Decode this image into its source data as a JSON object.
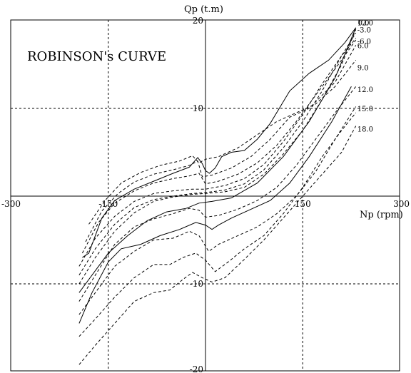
{
  "chart_data": {
    "type": "line",
    "title": "ROBINSON's CURVE",
    "xlabel": "Np (rpm)",
    "ylabel": "Qp (t.m)",
    "xlim": [
      -300,
      300
    ],
    "ylim": [
      -20,
      20
    ],
    "grid": true,
    "x_ticks": [
      {
        "value": -300,
        "label": "-300"
      },
      {
        "value": -150,
        "label": "-150"
      },
      {
        "value": 150,
        "label": "150"
      },
      {
        "value": 300,
        "label": "300"
      }
    ],
    "y_ticks": [
      {
        "value": 20,
        "label": "20"
      },
      {
        "value": 10,
        "label": "10"
      },
      {
        "value": -10,
        "label": "-10"
      },
      {
        "value": -20,
        "label": "-20"
      }
    ],
    "series": [
      {
        "name": "",
        "style": "solid",
        "points": [
          [
            -190,
            -7
          ],
          [
            -180,
            -6.5
          ],
          [
            -160,
            -2.5
          ],
          [
            -140,
            -0.5
          ],
          [
            -110,
            0.8
          ],
          [
            -80,
            1.7
          ],
          [
            -50,
            2.6
          ],
          [
            -25,
            3.3
          ],
          [
            -12,
            4.4
          ],
          [
            -5,
            3.7
          ],
          [
            0,
            2.9
          ],
          [
            6,
            2.6
          ],
          [
            15,
            3.2
          ],
          [
            25,
            4.5
          ],
          [
            40,
            5
          ],
          [
            60,
            5.2
          ],
          [
            80,
            6.5
          ],
          [
            100,
            8.3
          ],
          [
            130,
            12
          ],
          [
            160,
            14
          ],
          [
            190,
            15.5
          ],
          [
            215,
            17.5
          ],
          [
            232,
            19.2
          ]
        ]
      },
      {
        "name": "",
        "style": "solid",
        "points": [
          [
            -195,
            -11
          ],
          [
            -175,
            -9
          ],
          [
            -150,
            -6.5
          ],
          [
            -120,
            -4.5
          ],
          [
            -90,
            -2.8
          ],
          [
            -60,
            -1.8
          ],
          [
            -30,
            -1.4
          ],
          [
            -10,
            -0.8
          ],
          [
            10,
            -0.6
          ],
          [
            40,
            -0.2
          ],
          [
            80,
            1.5
          ],
          [
            120,
            4.5
          ],
          [
            160,
            8.5
          ],
          [
            200,
            13.5
          ],
          [
            232,
            19.2
          ]
        ]
      },
      {
        "name": "",
        "style": "solid",
        "points": [
          [
            -195,
            -14.5
          ],
          [
            -175,
            -11
          ],
          [
            -150,
            -7.5
          ],
          [
            -130,
            -6
          ],
          [
            -100,
            -5.5
          ],
          [
            -70,
            -4.5
          ],
          [
            -40,
            -3.8
          ],
          [
            -15,
            -3
          ],
          [
            0,
            -3.3
          ],
          [
            10,
            -3.8
          ],
          [
            20,
            -3.3
          ],
          [
            40,
            -2.5
          ],
          [
            70,
            -1.5
          ],
          [
            100,
            -0.5
          ],
          [
            130,
            1.5
          ],
          [
            160,
            4.5
          ],
          [
            195,
            8.5
          ],
          [
            225,
            12.5
          ]
        ]
      },
      {
        "name": "",
        "style": "dashed",
        "points": [
          [
            -195,
            -10
          ],
          [
            -170,
            -7
          ],
          [
            -140,
            -4
          ],
          [
            -110,
            -1.9
          ],
          [
            -80,
            -0.6
          ],
          [
            -50,
            -0.1
          ],
          [
            -20,
            0.2
          ],
          [
            0,
            0.3
          ],
          [
            30,
            0.5
          ],
          [
            60,
            1
          ],
          [
            90,
            2.5
          ],
          [
            120,
            4.8
          ],
          [
            150,
            7.5
          ],
          [
            180,
            11
          ],
          [
            210,
            15
          ],
          [
            232,
            19
          ]
        ]
      },
      {
        "name": "",
        "style": "dashed",
        "points": [
          [
            -195,
            -9
          ],
          [
            -170,
            -6
          ],
          [
            -140,
            -3.2
          ],
          [
            -110,
            -1.3
          ],
          [
            -80,
            -0.4
          ],
          [
            -50,
            0
          ],
          [
            -20,
            0.3
          ],
          [
            0,
            0.4
          ],
          [
            30,
            0.7
          ],
          [
            60,
            1.4
          ],
          [
            90,
            3
          ],
          [
            120,
            5.5
          ],
          [
            150,
            8.5
          ],
          [
            180,
            12
          ],
          [
            210,
            16
          ],
          [
            232,
            18.6
          ]
        ]
      },
      {
        "name": "",
        "style": "dashed",
        "points": [
          [
            -195,
            -8
          ],
          [
            -170,
            -4.8
          ],
          [
            -140,
            -2.3
          ],
          [
            -110,
            -0.6
          ],
          [
            -80,
            0.3
          ],
          [
            -50,
            0.6
          ],
          [
            -20,
            0.8
          ],
          [
            0,
            0.8
          ],
          [
            30,
            1.2
          ],
          [
            60,
            2
          ],
          [
            90,
            3.6
          ],
          [
            120,
            6.2
          ],
          [
            150,
            9.3
          ],
          [
            180,
            12.8
          ],
          [
            210,
            16
          ],
          [
            232,
            18
          ]
        ]
      },
      {
        "name": "",
        "style": "dashed",
        "points": [
          [
            -190,
            -6.5
          ],
          [
            -165,
            -3
          ],
          [
            -140,
            -0.8
          ],
          [
            -110,
            0.6
          ],
          [
            -80,
            1.5
          ],
          [
            -50,
            2
          ],
          [
            -25,
            2.3
          ],
          [
            -10,
            2.6
          ],
          [
            0,
            1.4
          ],
          [
            20,
            1.7
          ],
          [
            50,
            2.5
          ],
          [
            80,
            3.8
          ],
          [
            110,
            5.8
          ],
          [
            140,
            8.5
          ],
          [
            170,
            11.5
          ],
          [
            200,
            14.5
          ],
          [
            232,
            17.8
          ]
        ]
      },
      {
        "name": "",
        "style": "dashed",
        "points": [
          [
            -185,
            -5.2
          ],
          [
            -160,
            -1.7
          ],
          [
            -135,
            0.3
          ],
          [
            -110,
            1.6
          ],
          [
            -80,
            2.5
          ],
          [
            -50,
            3
          ],
          [
            -25,
            3.5
          ],
          [
            -12,
            4
          ],
          [
            -5,
            2.2
          ],
          [
            10,
            2.4
          ],
          [
            40,
            3.2
          ],
          [
            70,
            4.5
          ],
          [
            100,
            6.5
          ],
          [
            130,
            9
          ],
          [
            160,
            10
          ],
          [
            200,
            13
          ],
          [
            232,
            17.2
          ]
        ]
      },
      {
        "name": "",
        "style": "dashed",
        "points": [
          [
            -180,
            -3.2
          ],
          [
            -155,
            -0.5
          ],
          [
            -130,
            1.5
          ],
          [
            -100,
            2.7
          ],
          [
            -70,
            3.5
          ],
          [
            -40,
            4
          ],
          [
            -20,
            4.6
          ],
          [
            -10,
            3.8
          ],
          [
            0,
            4.2
          ],
          [
            20,
            4.5
          ],
          [
            50,
            5.5
          ],
          [
            80,
            7
          ],
          [
            110,
            8.5
          ],
          [
            140,
            9.5
          ],
          [
            170,
            10.5
          ],
          [
            200,
            12.5
          ],
          [
            232,
            15.5
          ]
        ]
      },
      {
        "name": "",
        "style": "dashed",
        "points": [
          [
            -195,
            -12
          ],
          [
            -170,
            -9
          ],
          [
            -140,
            -5.5
          ],
          [
            -110,
            -3.5
          ],
          [
            -80,
            -2.6
          ],
          [
            -50,
            -2
          ],
          [
            -25,
            -1.4
          ],
          [
            -10,
            -1.6
          ],
          [
            0,
            -2.4
          ],
          [
            20,
            -2.2
          ],
          [
            50,
            -1.5
          ],
          [
            80,
            -0.5
          ],
          [
            110,
            1
          ],
          [
            140,
            3.5
          ],
          [
            170,
            6.5
          ],
          [
            200,
            9.5
          ],
          [
            232,
            12.5
          ]
        ]
      },
      {
        "name": "",
        "style": "dashed",
        "points": [
          [
            -195,
            -13.5
          ],
          [
            -170,
            -11
          ],
          [
            -140,
            -8
          ],
          [
            -110,
            -6.3
          ],
          [
            -80,
            -5
          ],
          [
            -50,
            -4.8
          ],
          [
            -25,
            -4
          ],
          [
            -10,
            -4.5
          ],
          [
            5,
            -6.3
          ],
          [
            20,
            -5.5
          ],
          [
            50,
            -4.5
          ],
          [
            80,
            -3.5
          ],
          [
            110,
            -2
          ],
          [
            140,
            0
          ],
          [
            170,
            2.8
          ],
          [
            200,
            6.5
          ],
          [
            232,
            10.2
          ]
        ]
      },
      {
        "name": "",
        "style": "dashed",
        "points": [
          [
            -195,
            -16
          ],
          [
            -170,
            -14
          ],
          [
            -140,
            -11.5
          ],
          [
            -110,
            -9.3
          ],
          [
            -80,
            -7.8
          ],
          [
            -55,
            -7.8
          ],
          [
            -35,
            -7
          ],
          [
            -15,
            -6.5
          ],
          [
            0,
            -7.3
          ],
          [
            15,
            -8.6
          ],
          [
            35,
            -7.5
          ],
          [
            60,
            -6
          ],
          [
            90,
            -4.5
          ],
          [
            120,
            -2
          ],
          [
            150,
            1
          ],
          [
            180,
            4.5
          ],
          [
            210,
            7.5
          ],
          [
            232,
            9.5
          ]
        ]
      },
      {
        "name": "",
        "style": "dashed",
        "points": [
          [
            -195,
            -19.2
          ],
          [
            -170,
            -17
          ],
          [
            -140,
            -14.5
          ],
          [
            -110,
            -12
          ],
          [
            -80,
            -11
          ],
          [
            -55,
            -10.7
          ],
          [
            -35,
            -9.5
          ],
          [
            -20,
            -8.7
          ],
          [
            -5,
            -9.3
          ],
          [
            10,
            -9.8
          ],
          [
            30,
            -9.3
          ],
          [
            60,
            -7.2
          ],
          [
            90,
            -5
          ],
          [
            120,
            -2.5
          ],
          [
            150,
            0
          ],
          [
            180,
            2.5
          ],
          [
            210,
            5
          ],
          [
            232,
            8
          ]
        ]
      }
    ],
    "curve_labels": [
      {
        "text": "12.0",
        "x": 232,
        "y": 19.7
      },
      {
        "text": "0.0",
        "x": 233,
        "y": 19.7
      },
      {
        "text": "-3.0",
        "x": 232,
        "y": 18.9
      },
      {
        "text": "-6.0",
        "x": 232,
        "y": 17.6
      },
      {
        "text": "6.0",
        "x": 232,
        "y": 17.1
      },
      {
        "text": "9.0",
        "x": 232,
        "y": 14.6
      },
      {
        "text": "12.0",
        "x": 232,
        "y": 12.1
      },
      {
        "text": "15.0",
        "x": 232,
        "y": 9.9
      },
      {
        "text": "18.0",
        "x": 232,
        "y": 7.6
      }
    ]
  }
}
